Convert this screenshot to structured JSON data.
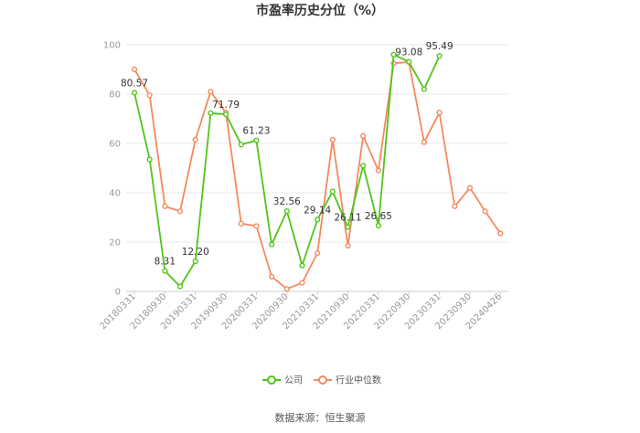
{
  "chart_data": {
    "type": "line",
    "title": "市盈率历史分位（%）",
    "xlabel": "",
    "ylabel": "",
    "ylim": [
      0,
      100
    ],
    "yticks": [
      0,
      20,
      40,
      60,
      80,
      100
    ],
    "x_tick_labels": [
      "20180331",
      "20180930",
      "20190331",
      "20190930",
      "20200331",
      "20200930",
      "20210331",
      "20210930",
      "20220331",
      "20220930",
      "20230331",
      "20230930",
      "20240426"
    ],
    "grid": true,
    "legend_position": "bottom",
    "series": [
      {
        "name": "公司",
        "color": "#52c41a",
        "values": [
          80.57,
          53.5,
          8.31,
          2.0,
          12.2,
          72.3,
          71.79,
          59.5,
          61.23,
          19.0,
          32.56,
          10.5,
          29.14,
          40.5,
          26.11,
          51.0,
          26.65,
          96.0,
          93.08,
          82.0,
          95.49,
          null,
          null,
          null,
          null,
          null
        ]
      },
      {
        "name": "行业中位数",
        "color": "#f4895f",
        "values": [
          90.0,
          79.5,
          34.5,
          32.5,
          61.5,
          81.0,
          72.5,
          27.5,
          26.5,
          6.0,
          1.0,
          3.5,
          15.5,
          61.5,
          18.5,
          63.0,
          49.0,
          92.5,
          93.0,
          60.5,
          72.5,
          34.5,
          42.0,
          32.5,
          23.5,
          null
        ]
      }
    ],
    "data_labels": [
      {
        "index": 0,
        "text": "80.57"
      },
      {
        "index": 2,
        "text": "8.31"
      },
      {
        "index": 4,
        "text": "12.20"
      },
      {
        "index": 6,
        "text": "71.79"
      },
      {
        "index": 8,
        "text": "61.23"
      },
      {
        "index": 10,
        "text": "32.56"
      },
      {
        "index": 12,
        "text": "29.14"
      },
      {
        "index": 14,
        "text": "26.11"
      },
      {
        "index": 16,
        "text": "26.65"
      },
      {
        "index": 18,
        "text": "93.08"
      },
      {
        "index": 20,
        "text": "95.49"
      }
    ]
  },
  "footer": {
    "source": "数据来源：恒生聚源"
  }
}
